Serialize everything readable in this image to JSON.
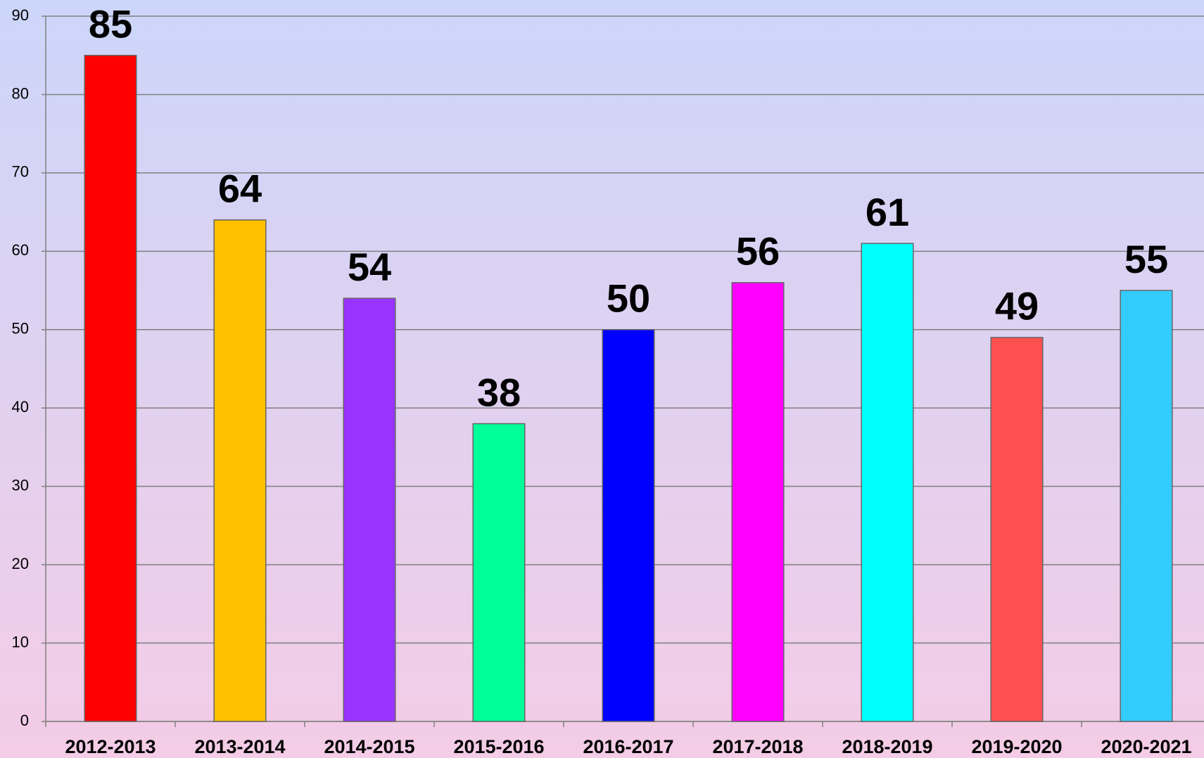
{
  "chart_data": {
    "type": "bar",
    "categories": [
      "2012-2013",
      "2013-2014",
      "2014-2015",
      "2015-2016",
      "2016-2017",
      "2017-2018",
      "2018-2019",
      "2019-2020",
      "2020-2021"
    ],
    "values": [
      85,
      64,
      54,
      38,
      50,
      56,
      61,
      49,
      55
    ],
    "colors": [
      "#ff0000",
      "#ffc000",
      "#9933ff",
      "#00ff99",
      "#0000ff",
      "#ff00ff",
      "#00ffff",
      "#ff5050",
      "#33ccff"
    ],
    "ylim": [
      0,
      90
    ],
    "yticks": [
      0,
      10,
      20,
      30,
      40,
      50,
      60,
      70,
      80,
      90
    ],
    "grid": true
  }
}
